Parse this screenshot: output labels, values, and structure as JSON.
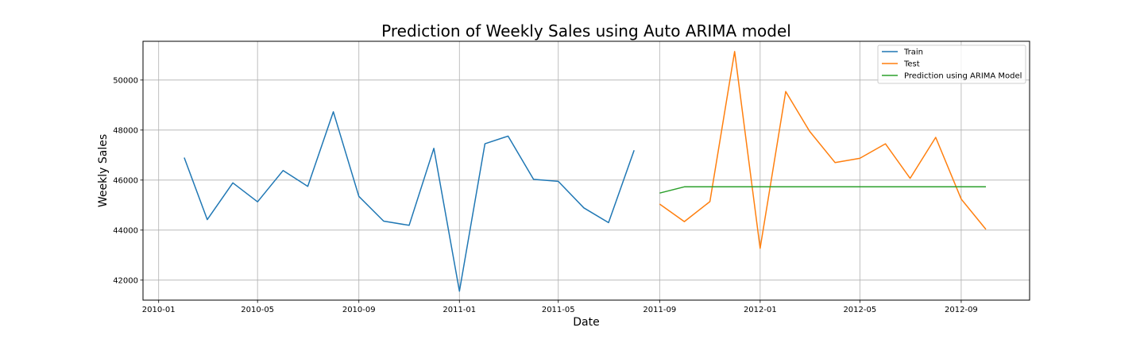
{
  "chart_data": {
    "type": "line",
    "title": "Prediction of Weekly Sales using Auto ARIMA model",
    "xlabel": "Date",
    "ylabel": "Weekly Sales",
    "xlim": [
      "2009-12-13",
      "2012-11-23"
    ],
    "ylim": [
      41200,
      51550
    ],
    "x_ticks": [
      "2010-01",
      "2010-05",
      "2010-09",
      "2011-01",
      "2011-05",
      "2011-09",
      "2012-01",
      "2012-05",
      "2012-09"
    ],
    "y_ticks": [
      42000,
      44000,
      46000,
      48000,
      50000
    ],
    "grid": true,
    "legend_position": "top-right",
    "series": [
      {
        "name": "Train",
        "color": "#1f77b4",
        "points": [
          {
            "x": "2010-02-01",
            "y": 46900
          },
          {
            "x": "2010-03-01",
            "y": 44420
          },
          {
            "x": "2010-04-01",
            "y": 45890
          },
          {
            "x": "2010-05-01",
            "y": 45130
          },
          {
            "x": "2010-06-01",
            "y": 46380
          },
          {
            "x": "2010-07-01",
            "y": 45750
          },
          {
            "x": "2010-08-01",
            "y": 48730
          },
          {
            "x": "2010-09-01",
            "y": 45350
          },
          {
            "x": "2010-10-01",
            "y": 44360
          },
          {
            "x": "2010-11-01",
            "y": 44190
          },
          {
            "x": "2010-12-01",
            "y": 47270
          },
          {
            "x": "2011-01-01",
            "y": 41560
          },
          {
            "x": "2011-02-01",
            "y": 47450
          },
          {
            "x": "2011-03-01",
            "y": 47760
          },
          {
            "x": "2011-04-01",
            "y": 46030
          },
          {
            "x": "2011-05-01",
            "y": 45950
          },
          {
            "x": "2011-06-01",
            "y": 44890
          },
          {
            "x": "2011-07-01",
            "y": 44300
          },
          {
            "x": "2011-08-01",
            "y": 47190
          }
        ]
      },
      {
        "name": "Test",
        "color": "#ff7f0e",
        "points": [
          {
            "x": "2011-09-01",
            "y": 45040
          },
          {
            "x": "2011-10-01",
            "y": 44340
          },
          {
            "x": "2011-11-01",
            "y": 45140
          },
          {
            "x": "2011-12-01",
            "y": 51140
          },
          {
            "x": "2012-01-01",
            "y": 43270
          },
          {
            "x": "2012-02-01",
            "y": 49540
          },
          {
            "x": "2012-03-01",
            "y": 47950
          },
          {
            "x": "2012-04-01",
            "y": 46700
          },
          {
            "x": "2012-05-01",
            "y": 46870
          },
          {
            "x": "2012-06-01",
            "y": 47450
          },
          {
            "x": "2012-07-01",
            "y": 46070
          },
          {
            "x": "2012-08-01",
            "y": 47710
          },
          {
            "x": "2012-09-01",
            "y": 45240
          },
          {
            "x": "2012-10-01",
            "y": 44030
          }
        ]
      },
      {
        "name": "Prediction using ARIMA Model",
        "color": "#2ca02c",
        "points": [
          {
            "x": "2011-09-01",
            "y": 45480
          },
          {
            "x": "2011-10-01",
            "y": 45730
          },
          {
            "x": "2011-11-01",
            "y": 45730
          },
          {
            "x": "2011-12-01",
            "y": 45730
          },
          {
            "x": "2012-01-01",
            "y": 45730
          },
          {
            "x": "2012-02-01",
            "y": 45730
          },
          {
            "x": "2012-03-01",
            "y": 45730
          },
          {
            "x": "2012-04-01",
            "y": 45730
          },
          {
            "x": "2012-05-01",
            "y": 45730
          },
          {
            "x": "2012-06-01",
            "y": 45730
          },
          {
            "x": "2012-07-01",
            "y": 45730
          },
          {
            "x": "2012-08-01",
            "y": 45730
          },
          {
            "x": "2012-09-01",
            "y": 45730
          },
          {
            "x": "2012-10-01",
            "y": 45730
          }
        ]
      }
    ]
  }
}
